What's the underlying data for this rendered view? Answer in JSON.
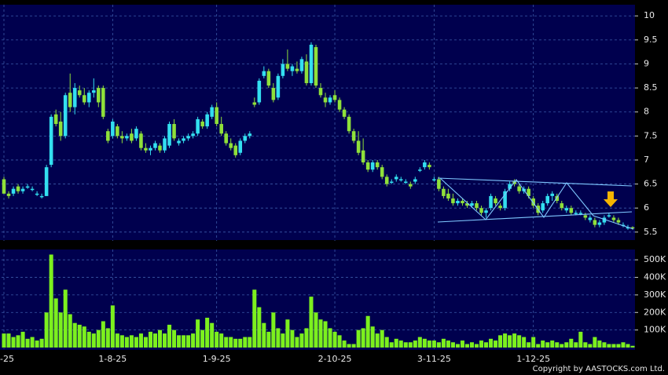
{
  "chart_data": [
    {
      "type": "candlestick",
      "up_color": "#33dff0",
      "down_color": "#8fe03a",
      "grid": true,
      "ylim": [
        5.35,
        10.2
      ],
      "yticks": [
        5.5,
        6,
        6.5,
        7,
        7.5,
        8,
        8.5,
        9,
        9.5,
        10
      ],
      "ohlc": [
        [
          6.6,
          6.65,
          6.3,
          6.3
        ],
        [
          6.3,
          6.35,
          6.2,
          6.25
        ],
        [
          6.3,
          6.45,
          6.25,
          6.4
        ],
        [
          6.45,
          6.5,
          6.3,
          6.35
        ],
        [
          6.35,
          6.45,
          6.3,
          6.4
        ],
        [
          6.45,
          6.5,
          6.4,
          6.45
        ],
        [
          6.4,
          6.45,
          6.35,
          6.4
        ],
        [
          6.3,
          6.35,
          6.25,
          6.3
        ],
        [
          6.25,
          6.3,
          6.2,
          6.25
        ],
        [
          6.25,
          6.9,
          6.25,
          6.85
        ],
        [
          6.9,
          7.95,
          6.85,
          7.9
        ],
        [
          7.95,
          8.05,
          7.7,
          7.75
        ],
        [
          7.8,
          8.0,
          7.4,
          7.5
        ],
        [
          7.5,
          8.4,
          7.45,
          8.35
        ],
        [
          8.4,
          8.8,
          8.0,
          8.1
        ],
        [
          8.1,
          8.6,
          7.95,
          8.5
        ],
        [
          8.45,
          8.55,
          8.3,
          8.35
        ],
        [
          8.35,
          8.5,
          8.15,
          8.2
        ],
        [
          8.2,
          8.45,
          8.1,
          8.4
        ],
        [
          8.4,
          8.7,
          8.3,
          8.45
        ],
        [
          8.5,
          8.55,
          8.1,
          8.2
        ],
        [
          8.5,
          8.55,
          7.85,
          7.9
        ],
        [
          7.6,
          7.65,
          7.35,
          7.4
        ],
        [
          7.5,
          7.85,
          7.45,
          7.8
        ],
        [
          7.7,
          7.75,
          7.45,
          7.5
        ],
        [
          7.5,
          7.6,
          7.35,
          7.45
        ],
        [
          7.45,
          7.55,
          7.4,
          7.5
        ],
        [
          7.55,
          7.65,
          7.35,
          7.4
        ],
        [
          7.45,
          7.7,
          7.4,
          7.65
        ],
        [
          7.55,
          7.6,
          7.2,
          7.25
        ],
        [
          7.25,
          7.35,
          7.15,
          7.2
        ],
        [
          7.2,
          7.3,
          7.1,
          7.25
        ],
        [
          7.25,
          7.4,
          7.2,
          7.35
        ],
        [
          7.3,
          7.35,
          7.15,
          7.2
        ],
        [
          7.2,
          7.5,
          7.15,
          7.45
        ],
        [
          7.3,
          7.8,
          7.25,
          7.75
        ],
        [
          7.75,
          7.85,
          7.4,
          7.45
        ],
        [
          7.35,
          7.45,
          7.3,
          7.4
        ],
        [
          7.4,
          7.5,
          7.35,
          7.45
        ],
        [
          7.45,
          7.55,
          7.4,
          7.5
        ],
        [
          7.5,
          7.6,
          7.45,
          7.55
        ],
        [
          7.55,
          7.9,
          7.5,
          7.85
        ],
        [
          7.8,
          7.85,
          7.65,
          7.7
        ],
        [
          7.7,
          8.0,
          7.65,
          7.95
        ],
        [
          7.9,
          8.15,
          7.85,
          8.1
        ],
        [
          8.1,
          8.2,
          7.7,
          7.75
        ],
        [
          7.75,
          7.9,
          7.5,
          7.55
        ],
        [
          7.55,
          7.6,
          7.3,
          7.35
        ],
        [
          7.35,
          7.45,
          7.2,
          7.25
        ],
        [
          7.3,
          7.35,
          7.05,
          7.1
        ],
        [
          7.15,
          7.45,
          7.1,
          7.4
        ],
        [
          7.4,
          7.55,
          7.35,
          7.5
        ],
        [
          7.5,
          7.6,
          7.45,
          7.55
        ],
        [
          8.2,
          8.3,
          8.1,
          8.15
        ],
        [
          8.2,
          8.7,
          8.15,
          8.65
        ],
        [
          8.75,
          8.95,
          8.7,
          8.85
        ],
        [
          8.85,
          8.9,
          8.5,
          8.55
        ],
        [
          8.5,
          8.6,
          8.2,
          8.25
        ],
        [
          8.3,
          8.8,
          8.25,
          8.75
        ],
        [
          8.75,
          9.1,
          8.7,
          9.0
        ],
        [
          9.0,
          9.3,
          8.85,
          8.9
        ],
        [
          8.85,
          9.0,
          8.75,
          8.95
        ],
        [
          8.9,
          9.05,
          8.8,
          8.85
        ],
        [
          8.85,
          9.15,
          8.8,
          9.1
        ],
        [
          9.05,
          9.2,
          8.55,
          8.6
        ],
        [
          8.6,
          9.45,
          8.55,
          9.4
        ],
        [
          9.35,
          9.4,
          8.5,
          8.55
        ],
        [
          8.5,
          8.6,
          8.3,
          8.35
        ],
        [
          8.3,
          8.4,
          8.1,
          8.2
        ],
        [
          8.2,
          8.35,
          8.15,
          8.3
        ],
        [
          8.35,
          8.45,
          8.2,
          8.25
        ],
        [
          8.25,
          8.3,
          8.0,
          8.05
        ],
        [
          8.05,
          8.1,
          7.85,
          7.9
        ],
        [
          7.9,
          7.95,
          7.55,
          7.6
        ],
        [
          7.6,
          7.65,
          7.35,
          7.4
        ],
        [
          7.4,
          7.6,
          7.1,
          7.15
        ],
        [
          7.2,
          7.45,
          6.9,
          6.95
        ],
        [
          6.95,
          7.0,
          6.75,
          6.8
        ],
        [
          6.8,
          7.0,
          6.75,
          6.95
        ],
        [
          6.95,
          7.0,
          6.8,
          6.85
        ],
        [
          6.85,
          6.9,
          6.6,
          6.65
        ],
        [
          6.65,
          6.7,
          6.45,
          6.5
        ],
        [
          6.55,
          6.6,
          6.5,
          6.55
        ],
        [
          6.6,
          6.7,
          6.55,
          6.65
        ],
        [
          6.6,
          6.65,
          6.55,
          6.6
        ],
        [
          6.55,
          6.6,
          6.5,
          6.55
        ],
        [
          6.5,
          6.55,
          6.4,
          6.45
        ],
        [
          6.55,
          6.65,
          6.5,
          6.6
        ],
        [
          6.8,
          6.85,
          6.75,
          6.8
        ],
        [
          6.85,
          7.0,
          6.8,
          6.95
        ],
        [
          6.9,
          6.95,
          6.8,
          6.85
        ],
        [
          6.6,
          6.65,
          6.55,
          6.6
        ],
        [
          6.6,
          6.65,
          6.35,
          6.4
        ],
        [
          6.4,
          6.45,
          6.2,
          6.25
        ],
        [
          6.3,
          6.4,
          6.15,
          6.2
        ],
        [
          6.2,
          6.3,
          6.05,
          6.1
        ],
        [
          6.1,
          6.2,
          6.05,
          6.15
        ],
        [
          6.15,
          6.2,
          6.05,
          6.1
        ],
        [
          6.1,
          6.15,
          6.0,
          6.05
        ],
        [
          6.05,
          6.15,
          6.0,
          6.1
        ],
        [
          6.1,
          6.15,
          5.95,
          6.0
        ],
        [
          6.0,
          6.05,
          5.85,
          5.9
        ],
        [
          5.9,
          6.0,
          5.8,
          5.95
        ],
        [
          6.0,
          6.3,
          5.95,
          6.25
        ],
        [
          6.2,
          6.25,
          6.05,
          6.1
        ],
        [
          6.05,
          6.1,
          5.95,
          6.0
        ],
        [
          6.0,
          6.4,
          5.95,
          6.35
        ],
        [
          6.4,
          6.55,
          6.35,
          6.5
        ],
        [
          6.55,
          6.6,
          6.45,
          6.5
        ],
        [
          6.45,
          6.5,
          6.3,
          6.35
        ],
        [
          6.35,
          6.45,
          6.3,
          6.4
        ],
        [
          6.4,
          6.45,
          6.2,
          6.25
        ],
        [
          6.2,
          6.25,
          6.0,
          6.05
        ],
        [
          6.05,
          6.1,
          5.85,
          5.9
        ],
        [
          5.95,
          6.15,
          5.9,
          6.1
        ],
        [
          6.1,
          6.3,
          6.05,
          6.25
        ],
        [
          6.25,
          6.35,
          6.15,
          6.3
        ],
        [
          6.25,
          6.3,
          6.1,
          6.15
        ],
        [
          6.1,
          6.15,
          5.95,
          6.0
        ],
        [
          5.95,
          6.05,
          5.9,
          6.0
        ],
        [
          6.0,
          6.05,
          5.85,
          5.9
        ],
        [
          5.9,
          5.95,
          5.85,
          5.9
        ],
        [
          5.9,
          5.95,
          5.85,
          5.9
        ],
        [
          5.85,
          5.9,
          5.75,
          5.8
        ],
        [
          5.75,
          5.85,
          5.7,
          5.8
        ],
        [
          5.75,
          5.8,
          5.6,
          5.65
        ],
        [
          5.65,
          5.75,
          5.6,
          5.7
        ],
        [
          5.7,
          5.85,
          5.65,
          5.8
        ],
        [
          5.85,
          5.9,
          5.8,
          5.85
        ],
        [
          5.8,
          5.85,
          5.7,
          5.75
        ],
        [
          5.75,
          5.8,
          5.65,
          5.7
        ],
        [
          5.65,
          5.7,
          5.6,
          5.65
        ],
        [
          5.6,
          5.65,
          5.55,
          5.6
        ],
        [
          5.6,
          5.62,
          5.55,
          5.58
        ]
      ]
    },
    {
      "type": "bar",
      "color": "#7cf01e",
      "grid": true,
      "ylim": [
        0,
        550000
      ],
      "yticks": [
        {
          "value": 100000,
          "label": "100K"
        },
        {
          "value": 200000,
          "label": "200K"
        },
        {
          "value": 300000,
          "label": "300K"
        },
        {
          "value": 400000,
          "label": "400K"
        },
        {
          "value": 500000,
          "label": "500K"
        }
      ],
      "categories": [
        "-25",
        null,
        null,
        null,
        null,
        null,
        null,
        null,
        null,
        null,
        null,
        null,
        null,
        null,
        null,
        null,
        null,
        null,
        null,
        null,
        null,
        null,
        null,
        "1-8-25",
        null,
        null,
        null,
        null,
        null,
        null,
        null,
        null,
        null,
        null,
        null,
        null,
        null,
        null,
        null,
        null,
        null,
        null,
        null,
        null,
        null,
        "1-9-25",
        null,
        null,
        null,
        null,
        null,
        null,
        null,
        null,
        null,
        null,
        null,
        null,
        null,
        null,
        null,
        null,
        null,
        null,
        null,
        null,
        null,
        null,
        null,
        null,
        "2-10-25",
        null,
        null,
        null,
        null,
        null,
        null,
        null,
        null,
        null,
        null,
        null,
        null,
        null,
        null,
        null,
        null,
        null,
        null,
        null,
        null,
        "3-11-25",
        null,
        null,
        null,
        null,
        null,
        null,
        null,
        null,
        null,
        null,
        null,
        null,
        null,
        null,
        null,
        null,
        null,
        null,
        null,
        null,
        "1-12-25",
        null,
        null,
        null,
        null,
        null,
        null,
        null,
        null,
        null,
        null,
        null,
        null,
        null,
        null,
        null,
        null,
        null,
        null,
        null,
        null,
        null
      ],
      "values": [
        80000,
        80000,
        60000,
        70000,
        90000,
        50000,
        60000,
        40000,
        50000,
        200000,
        530000,
        280000,
        200000,
        330000,
        190000,
        140000,
        130000,
        120000,
        90000,
        80000,
        100000,
        150000,
        110000,
        240000,
        80000,
        70000,
        60000,
        70000,
        60000,
        80000,
        60000,
        90000,
        80000,
        100000,
        80000,
        130000,
        100000,
        70000,
        70000,
        70000,
        80000,
        160000,
        100000,
        170000,
        140000,
        90000,
        80000,
        60000,
        60000,
        50000,
        50000,
        60000,
        60000,
        330000,
        230000,
        140000,
        90000,
        200000,
        110000,
        80000,
        160000,
        100000,
        60000,
        80000,
        110000,
        290000,
        200000,
        160000,
        150000,
        110000,
        90000,
        70000,
        40000,
        20000,
        20000,
        100000,
        110000,
        180000,
        120000,
        80000,
        100000,
        60000,
        30000,
        50000,
        40000,
        30000,
        30000,
        40000,
        60000,
        50000,
        40000,
        40000,
        30000,
        50000,
        40000,
        30000,
        20000,
        40000,
        20000,
        30000,
        20000,
        40000,
        30000,
        50000,
        40000,
        70000,
        80000,
        70000,
        80000,
        70000,
        60000,
        30000,
        60000,
        20000,
        40000,
        30000,
        40000,
        30000,
        20000,
        30000,
        50000,
        30000,
        90000,
        30000,
        20000,
        60000,
        40000,
        30000,
        20000,
        20000,
        20000,
        30000,
        20000,
        10000
      ]
    }
  ],
  "footer": {
    "copyright": "Copyright by AASTOCKS.com Ltd."
  }
}
